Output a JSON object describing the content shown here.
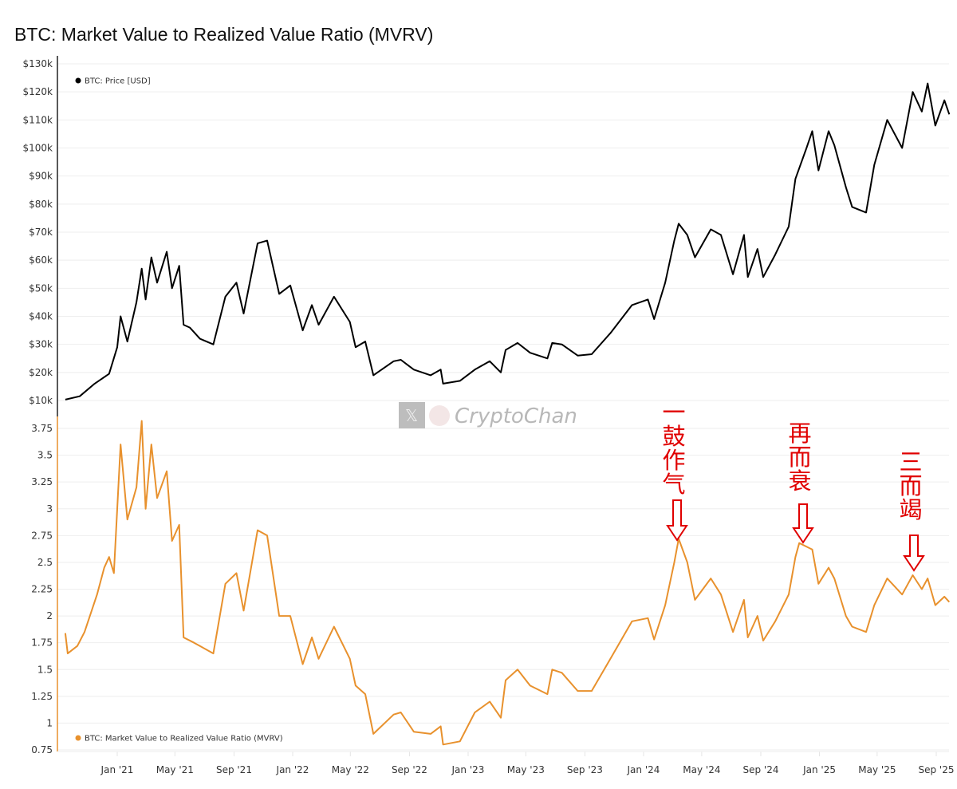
{
  "chart_data": [
    {
      "type": "line",
      "title": "BTC: Market Value to Realized Value Ratio (MVRV)",
      "panel": "top",
      "series": [
        {
          "name": "BTC: Price [USD]",
          "color": "#000000",
          "points": [
            [
              "2020-09-15",
              10300
            ],
            [
              "2020-10-15",
              11500
            ],
            [
              "2020-11-15",
              16000
            ],
            [
              "2020-12-15",
              19500
            ],
            [
              "2021-01-01",
              29000
            ],
            [
              "2021-01-08",
              40000
            ],
            [
              "2021-01-22",
              31000
            ],
            [
              "2021-02-10",
              45000
            ],
            [
              "2021-02-21",
              57000
            ],
            [
              "2021-03-01",
              46000
            ],
            [
              "2021-03-13",
              61000
            ],
            [
              "2021-03-25",
              52000
            ],
            [
              "2021-04-14",
              63000
            ],
            [
              "2021-04-25",
              50000
            ],
            [
              "2021-05-10",
              58000
            ],
            [
              "2021-05-19",
              37000
            ],
            [
              "2021-06-01",
              36000
            ],
            [
              "2021-06-22",
              32000
            ],
            [
              "2021-07-20",
              30000
            ],
            [
              "2021-08-14",
              47000
            ],
            [
              "2021-09-06",
              52000
            ],
            [
              "2021-09-21",
              41000
            ],
            [
              "2021-10-20",
              66000
            ],
            [
              "2021-11-09",
              67000
            ],
            [
              "2021-12-04",
              48000
            ],
            [
              "2021-12-27",
              51000
            ],
            [
              "2022-01-22",
              35000
            ],
            [
              "2022-02-10",
              44000
            ],
            [
              "2022-02-24",
              37000
            ],
            [
              "2022-03-28",
              47000
            ],
            [
              "2022-04-30",
              38000
            ],
            [
              "2022-05-12",
              29000
            ],
            [
              "2022-06-01",
              31000
            ],
            [
              "2022-06-18",
              19000
            ],
            [
              "2022-07-30",
              24000
            ],
            [
              "2022-08-14",
              24500
            ],
            [
              "2022-09-10",
              21000
            ],
            [
              "2022-10-15",
              19000
            ],
            [
              "2022-11-05",
              21000
            ],
            [
              "2022-11-10",
              16000
            ],
            [
              "2022-12-15",
              17000
            ],
            [
              "2023-01-15",
              21000
            ],
            [
              "2023-02-15",
              24000
            ],
            [
              "2023-03-10",
              20000
            ],
            [
              "2023-03-20",
              28000
            ],
            [
              "2023-04-14",
              30500
            ],
            [
              "2023-05-10",
              27000
            ],
            [
              "2023-06-15",
              25000
            ],
            [
              "2023-06-25",
              30500
            ],
            [
              "2023-07-15",
              30000
            ],
            [
              "2023-08-17",
              26000
            ],
            [
              "2023-09-15",
              26500
            ],
            [
              "2023-10-24",
              34000
            ],
            [
              "2023-12-08",
              44000
            ],
            [
              "2024-01-10",
              46000
            ],
            [
              "2024-01-23",
              39000
            ],
            [
              "2024-02-15",
              52000
            ],
            [
              "2024-03-05",
              67000
            ],
            [
              "2024-03-14",
              73000
            ],
            [
              "2024-04-01",
              69000
            ],
            [
              "2024-04-17",
              61000
            ],
            [
              "2024-05-20",
              71000
            ],
            [
              "2024-06-10",
              69000
            ],
            [
              "2024-07-05",
              55000
            ],
            [
              "2024-07-28",
              69000
            ],
            [
              "2024-08-05",
              54000
            ],
            [
              "2024-08-25",
              64000
            ],
            [
              "2024-09-06",
              54000
            ],
            [
              "2024-10-01",
              62000
            ],
            [
              "2024-10-29",
              72000
            ],
            [
              "2024-11-12",
              89000
            ],
            [
              "2024-12-05",
              100000
            ],
            [
              "2024-12-17",
              106000
            ],
            [
              "2024-12-30",
              92000
            ],
            [
              "2025-01-20",
              106000
            ],
            [
              "2025-02-01",
              101000
            ],
            [
              "2025-02-25",
              86000
            ],
            [
              "2025-03-10",
              79000
            ],
            [
              "2025-04-08",
              77000
            ],
            [
              "2025-04-25",
              94000
            ],
            [
              "2025-05-22",
              110000
            ],
            [
              "2025-06-22",
              100000
            ],
            [
              "2025-07-14",
              120000
            ],
            [
              "2025-08-02",
              113000
            ],
            [
              "2025-08-14",
              123000
            ],
            [
              "2025-08-30",
              108000
            ],
            [
              "2025-09-18",
              117000
            ],
            [
              "2025-09-28",
              112000
            ]
          ]
        }
      ],
      "ylim": [
        10000,
        130000
      ],
      "yticks": [
        10000,
        20000,
        30000,
        40000,
        50000,
        60000,
        70000,
        80000,
        90000,
        100000,
        110000,
        120000,
        130000
      ],
      "ytick_labels": [
        "$10k",
        "$20k",
        "$30k",
        "$40k",
        "$50k",
        "$60k",
        "$70k",
        "$80k",
        "$90k",
        "$100k",
        "$110k",
        "$120k",
        "$130k"
      ],
      "legend": "top-left",
      "grid": true
    },
    {
      "type": "line",
      "panel": "bottom",
      "series": [
        {
          "name": "BTC: Market Value to Realized Value Ratio (MVRV)",
          "color": "#e8912d",
          "points": [
            [
              "2020-09-15",
              1.84
            ],
            [
              "2020-09-20",
              1.65
            ],
            [
              "2020-10-10",
              1.72
            ],
            [
              "2020-10-25",
              1.85
            ],
            [
              "2020-11-20",
              2.2
            ],
            [
              "2020-12-05",
              2.45
            ],
            [
              "2020-12-15",
              2.55
            ],
            [
              "2020-12-25",
              2.4
            ],
            [
              "2021-01-08",
              3.6
            ],
            [
              "2021-01-22",
              2.9
            ],
            [
              "2021-02-10",
              3.2
            ],
            [
              "2021-02-21",
              3.82
            ],
            [
              "2021-03-01",
              3.0
            ],
            [
              "2021-03-13",
              3.6
            ],
            [
              "2021-03-25",
              3.1
            ],
            [
              "2021-04-14",
              3.35
            ],
            [
              "2021-04-25",
              2.7
            ],
            [
              "2021-05-10",
              2.85
            ],
            [
              "2021-05-19",
              1.8
            ],
            [
              "2021-06-10",
              1.75
            ],
            [
              "2021-07-20",
              1.65
            ],
            [
              "2021-08-14",
              2.3
            ],
            [
              "2021-09-06",
              2.4
            ],
            [
              "2021-09-21",
              2.05
            ],
            [
              "2021-10-20",
              2.8
            ],
            [
              "2021-11-09",
              2.75
            ],
            [
              "2021-12-04",
              2.0
            ],
            [
              "2021-12-27",
              2.0
            ],
            [
              "2022-01-22",
              1.55
            ],
            [
              "2022-02-10",
              1.8
            ],
            [
              "2022-02-24",
              1.6
            ],
            [
              "2022-03-28",
              1.9
            ],
            [
              "2022-04-30",
              1.6
            ],
            [
              "2022-05-12",
              1.35
            ],
            [
              "2022-06-01",
              1.27
            ],
            [
              "2022-06-18",
              0.9
            ],
            [
              "2022-07-30",
              1.08
            ],
            [
              "2022-08-14",
              1.1
            ],
            [
              "2022-09-10",
              0.92
            ],
            [
              "2022-10-15",
              0.9
            ],
            [
              "2022-11-05",
              0.97
            ],
            [
              "2022-11-10",
              0.8
            ],
            [
              "2022-12-15",
              0.83
            ],
            [
              "2023-01-15",
              1.1
            ],
            [
              "2023-02-15",
              1.2
            ],
            [
              "2023-03-10",
              1.05
            ],
            [
              "2023-03-20",
              1.4
            ],
            [
              "2023-04-14",
              1.5
            ],
            [
              "2023-05-10",
              1.35
            ],
            [
              "2023-06-15",
              1.27
            ],
            [
              "2023-06-25",
              1.5
            ],
            [
              "2023-07-15",
              1.47
            ],
            [
              "2023-08-17",
              1.3
            ],
            [
              "2023-09-15",
              1.3
            ],
            [
              "2023-10-24",
              1.6
            ],
            [
              "2023-12-08",
              1.95
            ],
            [
              "2024-01-10",
              1.98
            ],
            [
              "2024-01-23",
              1.78
            ],
            [
              "2024-02-15",
              2.1
            ],
            [
              "2024-03-05",
              2.5
            ],
            [
              "2024-03-14",
              2.72
            ],
            [
              "2024-04-01",
              2.5
            ],
            [
              "2024-04-17",
              2.15
            ],
            [
              "2024-05-20",
              2.35
            ],
            [
              "2024-06-10",
              2.2
            ],
            [
              "2024-07-05",
              1.85
            ],
            [
              "2024-07-28",
              2.15
            ],
            [
              "2024-08-05",
              1.8
            ],
            [
              "2024-08-25",
              2.0
            ],
            [
              "2024-09-06",
              1.77
            ],
            [
              "2024-10-01",
              1.95
            ],
            [
              "2024-10-29",
              2.2
            ],
            [
              "2024-11-12",
              2.55
            ],
            [
              "2024-11-20",
              2.68
            ],
            [
              "2024-12-17",
              2.62
            ],
            [
              "2024-12-30",
              2.3
            ],
            [
              "2025-01-20",
              2.45
            ],
            [
              "2025-02-01",
              2.35
            ],
            [
              "2025-02-25",
              2.0
            ],
            [
              "2025-03-10",
              1.9
            ],
            [
              "2025-04-08",
              1.85
            ],
            [
              "2025-04-25",
              2.1
            ],
            [
              "2025-05-22",
              2.35
            ],
            [
              "2025-06-22",
              2.2
            ],
            [
              "2025-07-14",
              2.38
            ],
            [
              "2025-08-02",
              2.25
            ],
            [
              "2025-08-14",
              2.35
            ],
            [
              "2025-08-30",
              2.1
            ],
            [
              "2025-09-18",
              2.18
            ],
            [
              "2025-09-28",
              2.13
            ]
          ]
        }
      ],
      "ylim": [
        0.75,
        3.75
      ],
      "yticks": [
        0.75,
        1,
        1.25,
        1.5,
        1.75,
        2,
        2.25,
        2.5,
        2.75,
        3,
        3.25,
        3.5,
        3.75
      ],
      "ytick_labels": [
        "0.75",
        "1",
        "1.25",
        "1.5",
        "1.75",
        "2",
        "2.25",
        "2.5",
        "2.75",
        "3",
        "3.25",
        "3.5",
        "3.75"
      ],
      "legend": "bottom-left",
      "grid": true,
      "annotations": [
        {
          "text": "一鼓作气",
          "date": "2024-03-14",
          "value": 2.72
        },
        {
          "text": "再而衰",
          "date": "2024-11-20",
          "value": 2.68
        },
        {
          "text": "三而竭",
          "date": "2025-07-14",
          "value": 2.38
        }
      ]
    }
  ],
  "xaxis": {
    "ticks": [
      "2021-01-01",
      "2021-05-01",
      "2021-09-01",
      "2022-01-01",
      "2022-05-01",
      "2022-09-01",
      "2023-01-01",
      "2023-05-01",
      "2023-09-01",
      "2024-01-01",
      "2024-05-01",
      "2024-09-01",
      "2025-01-01",
      "2025-05-01",
      "2025-09-01"
    ],
    "tick_labels": [
      "Jan '21",
      "May '21",
      "Sep '21",
      "Jan '22",
      "May '22",
      "Sep '22",
      "Jan '23",
      "May '23",
      "Sep '23",
      "Jan '24",
      "May '24",
      "Sep '24",
      "Jan '25",
      "May '25",
      "Sep '25"
    ]
  },
  "watermark": "CryptoChan",
  "colors": {
    "price": "#000000",
    "mvrv": "#e8912d",
    "annotation": "#e00000"
  }
}
